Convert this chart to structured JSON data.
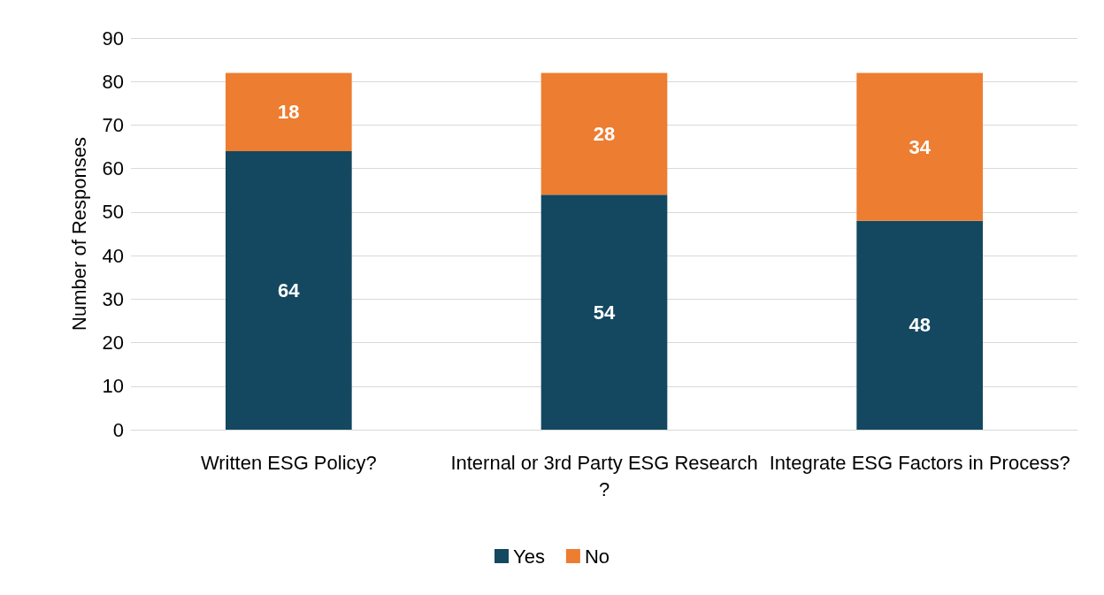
{
  "chart_data": {
    "type": "bar",
    "stacked": true,
    "ylabel": "Number of Responses",
    "categories": [
      "Written ESG Policy?",
      "Internal or 3rd Party ESG Research?",
      "Integrate ESG Factors in Process?"
    ],
    "series": [
      {
        "name": "Yes",
        "color": "#134860",
        "values": [
          64,
          54,
          48
        ]
      },
      {
        "name": "No",
        "color": "#ed7d31",
        "values": [
          18,
          28,
          34
        ]
      }
    ],
    "ylim": [
      0,
      90
    ],
    "yticks": [
      0,
      10,
      20,
      30,
      40,
      50,
      60,
      70,
      80,
      90
    ],
    "grid": "y",
    "legend": "bottom",
    "data_labels": true
  }
}
